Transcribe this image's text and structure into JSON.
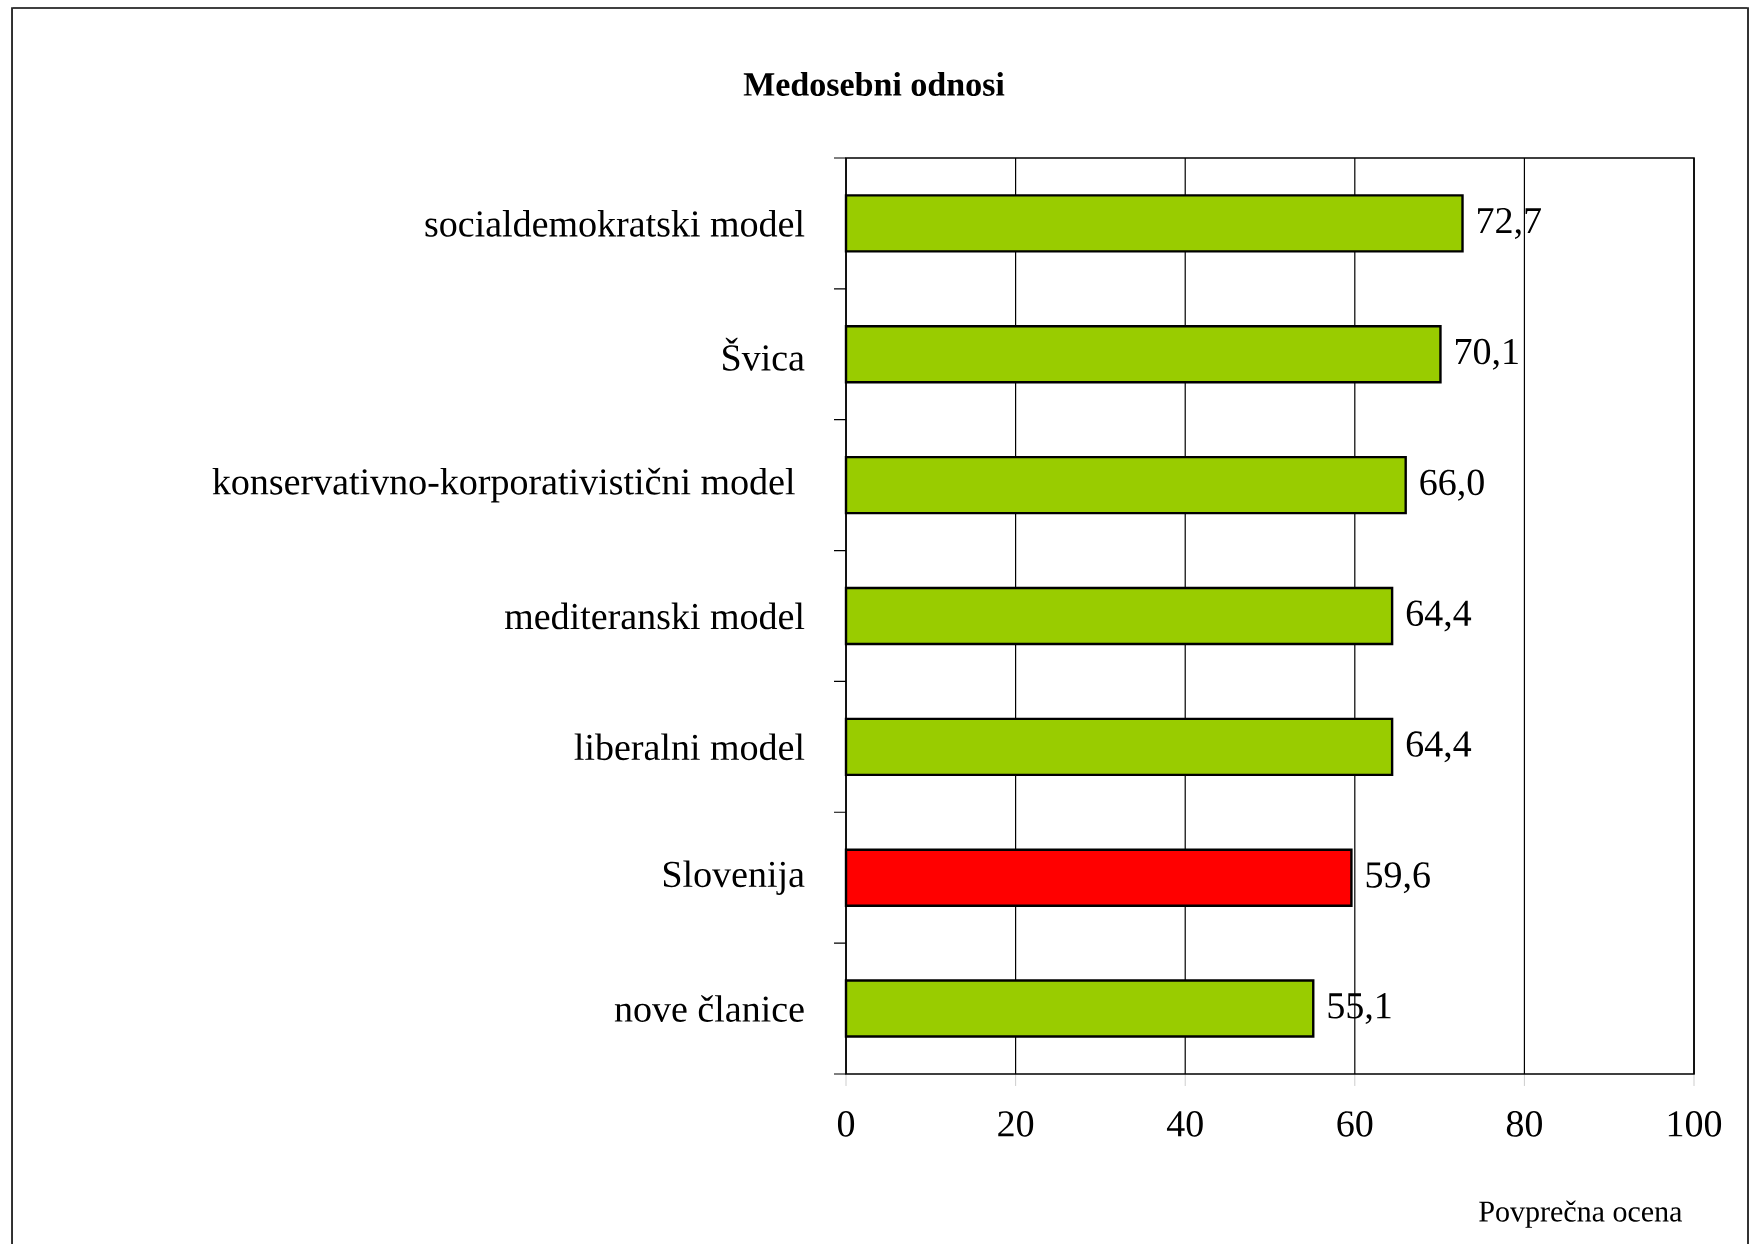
{
  "chart_data": {
    "type": "bar",
    "orientation": "horizontal",
    "title": "Medosebni odnosi",
    "xlabel": "Povprečna ocena",
    "categories": [
      "socialdemokratski model",
      "Švica",
      "konservativno-korporativistični model ",
      "mediteranski model",
      "liberalni model",
      "Slovenija",
      "nove članice"
    ],
    "values": [
      72.7,
      70.1,
      66.0,
      64.4,
      64.4,
      59.6,
      55.1
    ],
    "value_labels": [
      "72,7",
      "70,1",
      "66,0",
      "64,4",
      "64,4",
      "59,6",
      "55,1"
    ],
    "colors": [
      "#99cc00",
      "#99cc00",
      "#99cc00",
      "#99cc00",
      "#99cc00",
      "#ff0000",
      "#99cc00"
    ],
    "xlim": [
      0,
      100
    ],
    "xticks": [
      0,
      20,
      40,
      60,
      80,
      100
    ],
    "grid": "x"
  }
}
